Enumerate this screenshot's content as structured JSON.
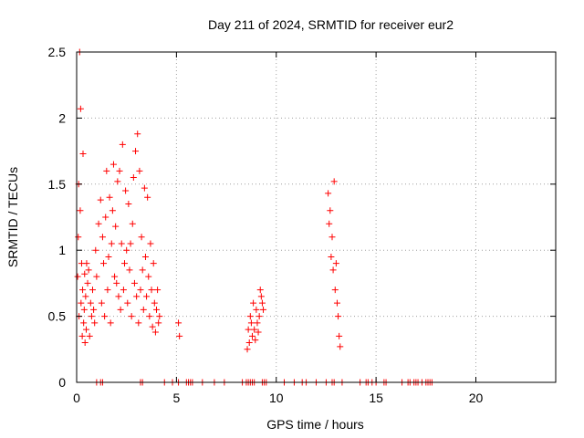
{
  "chart_data": {
    "type": "scatter",
    "title": "Day 211 of 2024, SRMTID for receiver eur2",
    "xlabel": "GPS time / hours",
    "ylabel": "SRMTID / TECUs",
    "xlim": [
      0,
      24
    ],
    "ylim": [
      0,
      2.5
    ],
    "xticks": [
      0,
      5,
      10,
      15,
      20
    ],
    "xtick_labels": [
      "0",
      "5",
      "10",
      "15",
      "20"
    ],
    "yticks": [
      0,
      0.5,
      1,
      1.5,
      2,
      2.5
    ],
    "ytick_labels": [
      "0",
      "0.5",
      "1",
      "1.5",
      "2",
      "2.5"
    ],
    "grid": true,
    "series": [
      {
        "name": "SRMTID",
        "color": "#ff0000",
        "marker": "plus",
        "x": [
          0.05,
          0.08,
          0.1,
          0.12,
          0.15,
          0.18,
          0.2,
          0.22,
          0.25,
          0.28,
          0.3,
          0.32,
          0.35,
          0.38,
          0.4,
          0.42,
          0.45,
          0.48,
          0.5,
          0.55,
          0.6,
          0.65,
          0.7,
          0.75,
          0.8,
          0.85,
          0.9,
          0.95,
          1.0,
          1.1,
          1.2,
          1.25,
          1.3,
          1.35,
          1.4,
          1.45,
          1.5,
          1.55,
          1.6,
          1.65,
          1.7,
          1.75,
          1.8,
          1.85,
          1.9,
          1.95,
          2.0,
          2.05,
          2.1,
          2.15,
          2.2,
          2.25,
          2.3,
          2.35,
          2.4,
          2.45,
          2.5,
          2.55,
          2.6,
          2.65,
          2.7,
          2.75,
          2.8,
          2.85,
          2.9,
          2.95,
          3.0,
          3.05,
          3.1,
          3.15,
          3.2,
          3.25,
          3.3,
          3.35,
          3.4,
          3.45,
          3.5,
          3.55,
          3.6,
          3.65,
          3.7,
          3.75,
          3.8,
          3.85,
          3.9,
          3.95,
          4.0,
          4.05,
          4.1,
          4.15,
          5.1,
          5.15,
          8.55,
          8.6,
          8.65,
          8.7,
          8.75,
          8.8,
          8.85,
          8.9,
          8.95,
          9.0,
          9.05,
          9.1,
          9.15,
          9.2,
          9.25,
          9.3,
          9.35,
          12.6,
          12.65,
          12.7,
          12.75,
          12.8,
          12.85,
          12.9,
          12.95,
          13.0,
          13.05,
          13.1,
          13.15,
          13.2
        ],
        "y": [
          0.8,
          1.1,
          1.5,
          0.5,
          2.5,
          1.3,
          2.07,
          0.6,
          0.9,
          0.35,
          0.7,
          1.73,
          0.45,
          0.55,
          0.82,
          0.3,
          0.65,
          0.4,
          0.9,
          0.75,
          0.85,
          0.35,
          0.6,
          0.5,
          0.7,
          0.55,
          0.45,
          1.0,
          0.8,
          1.2,
          1.38,
          0.6,
          1.1,
          0.9,
          0.5,
          1.25,
          1.6,
          0.7,
          0.95,
          1.4,
          0.45,
          1.05,
          1.3,
          1.65,
          0.8,
          1.18,
          0.75,
          1.52,
          0.65,
          1.6,
          0.55,
          1.05,
          1.8,
          0.7,
          0.9,
          1.45,
          1.0,
          0.6,
          1.35,
          0.85,
          1.05,
          0.5,
          1.2,
          1.55,
          0.75,
          1.75,
          0.65,
          1.88,
          0.45,
          1.6,
          0.7,
          1.1,
          0.85,
          0.55,
          1.47,
          0.95,
          0.65,
          1.4,
          0.8,
          0.5,
          1.05,
          0.7,
          0.42,
          0.9,
          0.6,
          0.38,
          0.55,
          0.7,
          0.45,
          0.5,
          0.45,
          0.35,
          0.25,
          0.4,
          0.3,
          0.5,
          0.45,
          0.35,
          0.6,
          0.4,
          0.32,
          0.55,
          0.45,
          0.38,
          0.5,
          0.7,
          0.65,
          0.6,
          0.55,
          1.43,
          1.2,
          1.3,
          0.95,
          1.1,
          0.85,
          1.52,
          0.7,
          0.9,
          0.6,
          0.5,
          0.35,
          0.27
        ],
        "zero_x": [
          1.0,
          1.2,
          1.3,
          3.2,
          3.3,
          4.4,
          4.8,
          5.1,
          5.5,
          5.6,
          5.7,
          5.8,
          6.3,
          6.9,
          7.4,
          8.3,
          8.5,
          8.6,
          8.7,
          8.8,
          8.9,
          9.3,
          9.4,
          9.5,
          10.4,
          10.9,
          11.3,
          11.5,
          12.0,
          12.5,
          12.8,
          12.9,
          13.3,
          14.2,
          14.5,
          14.6,
          14.8,
          15.0,
          15.4,
          15.5,
          16.3,
          16.6,
          16.7,
          16.9,
          17.0,
          17.1,
          17.3,
          17.5,
          17.6,
          17.7,
          17.8
        ]
      }
    ]
  }
}
